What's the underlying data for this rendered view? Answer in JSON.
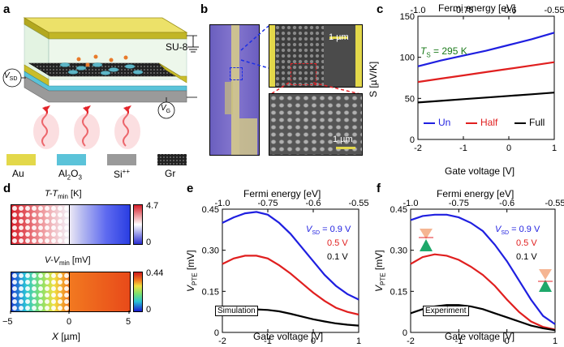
{
  "panels": {
    "a": {
      "label": "a",
      "su8": "SU-8",
      "vsd": "V",
      "vsd_sub": "SD",
      "vg": "V",
      "vg_sub": "G",
      "legend": [
        {
          "name": "Au",
          "color": "#e3d84a"
        },
        {
          "name": "Al",
          "sub": "2",
          "name2": "O",
          "sub2": "3",
          "color": "#5bc3d9"
        },
        {
          "name": "Si",
          "sup": "++",
          "color": "#9a9a9a"
        },
        {
          "name": "Gr",
          "color": "#1c1c1c"
        }
      ]
    },
    "b": {
      "label": "b",
      "scale1": "1 µm",
      "scale2": "1 µm"
    },
    "c": {
      "label": "c",
      "top_axis_label": "Fermi energy [eV]",
      "xlabel": "Gate voltage [V]",
      "ylabel": "S [µV/K]",
      "annotation": "T",
      "annotation_sub": "S",
      "annotation_rest": " = 295 K",
      "annotation_color": "#1a7a1a"
    },
    "d": {
      "label": "d",
      "top_title": "T",
      "top_title_mid": "-T",
      "top_title_sub": "min",
      "top_title_unit": " [K]",
      "top_cbar_max": "4.7",
      "top_cbar_min": "0",
      "bot_title": "V",
      "bot_title_mid": "-V",
      "bot_title_sub": "min",
      "bot_title_unit": " [mV]",
      "bot_cbar_max": "0.44",
      "bot_cbar_min": "0",
      "xlabel": "X",
      "xlabel_unit": " [µm]",
      "xticks": [
        "−5",
        "0",
        "5"
      ]
    },
    "e": {
      "label": "e",
      "top_axis_label": "Fermi energy [eV]",
      "xlabel": "Gate voltage [V]",
      "ylabel": "V",
      "ylabel_sub": "PTE",
      "ylabel_unit": " [mV]",
      "box_label": "Simulation"
    },
    "f": {
      "label": "f",
      "top_axis_label": "Fermi energy [eV]",
      "xlabel": "Gate voltage [V]",
      "ylabel": "V",
      "ylabel_sub": "PTE",
      "ylabel_unit": " [mV]",
      "box_label": "Experiment"
    }
  },
  "chart_data": [
    {
      "panel": "c",
      "type": "line",
      "x": [
        -2,
        -1.5,
        -1,
        -0.5,
        0,
        0.5,
        1
      ],
      "top_axis_ticks": [
        "-1.0",
        "-0.75",
        "-0.6",
        "-0.55"
      ],
      "top_axis_tick_positions_gate_v": [
        -2,
        -1.0,
        0.0,
        1.0
      ],
      "xticks": [
        -2,
        -1,
        0,
        1
      ],
      "yticks": [
        0,
        50,
        100,
        150
      ],
      "xlim": [
        -2,
        1
      ],
      "ylim": [
        0,
        150
      ],
      "legend_position": "bottom",
      "series": [
        {
          "name": "Un",
          "color": "#1f1fe0",
          "values": [
            89,
            96,
            102,
            108,
            115,
            122,
            130
          ]
        },
        {
          "name": "Half",
          "color": "#e01f1f",
          "values": [
            70,
            74,
            78,
            82,
            86,
            90,
            94
          ]
        },
        {
          "name": "Full",
          "color": "#000000",
          "values": [
            45,
            47,
            49,
            51,
            53,
            55,
            57
          ]
        }
      ]
    },
    {
      "panel": "e",
      "type": "line",
      "x": [
        -2,
        -1.75,
        -1.5,
        -1.25,
        -1,
        -0.75,
        -0.5,
        -0.25,
        0,
        0.25,
        0.5,
        0.75,
        1
      ],
      "top_axis_ticks": [
        "-1.0",
        "-0.75",
        "-0.6",
        "-0.55"
      ],
      "top_axis_tick_positions_gate_v": [
        -2,
        -1.0,
        0.0,
        1.0
      ],
      "xticks": [
        -2,
        -1,
        0,
        1
      ],
      "yticks": [
        0,
        0.15,
        0.3,
        0.45
      ],
      "ytick_labels": [
        "0",
        "0.15",
        "0.30",
        "0.45"
      ],
      "xlim": [
        -2,
        1
      ],
      "ylim": [
        0,
        0.45
      ],
      "series": [
        {
          "name": "0.9 V",
          "label_prefix": "V",
          "label_sub": "SD",
          "label_eq": " = 0.9 V",
          "color": "#1f1fe0",
          "values": [
            0.4,
            0.42,
            0.435,
            0.44,
            0.43,
            0.4,
            0.36,
            0.31,
            0.26,
            0.21,
            0.17,
            0.14,
            0.12
          ]
        },
        {
          "name": "0.5 V",
          "color": "#e01f1f",
          "values": [
            0.25,
            0.27,
            0.28,
            0.28,
            0.27,
            0.245,
            0.215,
            0.18,
            0.145,
            0.115,
            0.09,
            0.075,
            0.065
          ]
        },
        {
          "name": "0.1 V",
          "color": "#000000",
          "values": [
            0.075,
            0.08,
            0.083,
            0.084,
            0.082,
            0.077,
            0.068,
            0.058,
            0.048,
            0.04,
            0.033,
            0.028,
            0.025
          ]
        }
      ]
    },
    {
      "panel": "f",
      "type": "line",
      "x": [
        -2,
        -1.75,
        -1.5,
        -1.25,
        -1,
        -0.75,
        -0.5,
        -0.25,
        0,
        0.25,
        0.5,
        0.75,
        1
      ],
      "top_axis_ticks": [
        "-1.0",
        "-0.75",
        "-0.6",
        "-0.55"
      ],
      "top_axis_tick_positions_gate_v": [
        -2,
        -1.0,
        0.0,
        1.0
      ],
      "xticks": [
        -2,
        -1,
        0,
        1
      ],
      "yticks": [
        0,
        0.15,
        0.3,
        0.45
      ],
      "ytick_labels": [
        "0",
        "0.15",
        "0.30",
        "0.45"
      ],
      "xlim": [
        -2,
        1
      ],
      "ylim": [
        0,
        0.45
      ],
      "series": [
        {
          "name": "0.9 V",
          "label_prefix": "V",
          "label_sub": "SD",
          "label_eq": " = 0.9 V",
          "color": "#1f1fe0",
          "values": [
            0.41,
            0.425,
            0.43,
            0.43,
            0.42,
            0.4,
            0.37,
            0.32,
            0.26,
            0.19,
            0.12,
            0.06,
            0.03
          ]
        },
        {
          "name": "0.5 V",
          "color": "#e01f1f",
          "values": [
            0.25,
            0.275,
            0.285,
            0.28,
            0.265,
            0.24,
            0.21,
            0.17,
            0.12,
            0.075,
            0.04,
            0.02,
            0.01
          ]
        },
        {
          "name": "0.1 V",
          "color": "#000000",
          "values": [
            0.07,
            0.085,
            0.095,
            0.1,
            0.1,
            0.095,
            0.085,
            0.07,
            0.055,
            0.04,
            0.025,
            0.015,
            0.008
          ]
        }
      ]
    }
  ]
}
